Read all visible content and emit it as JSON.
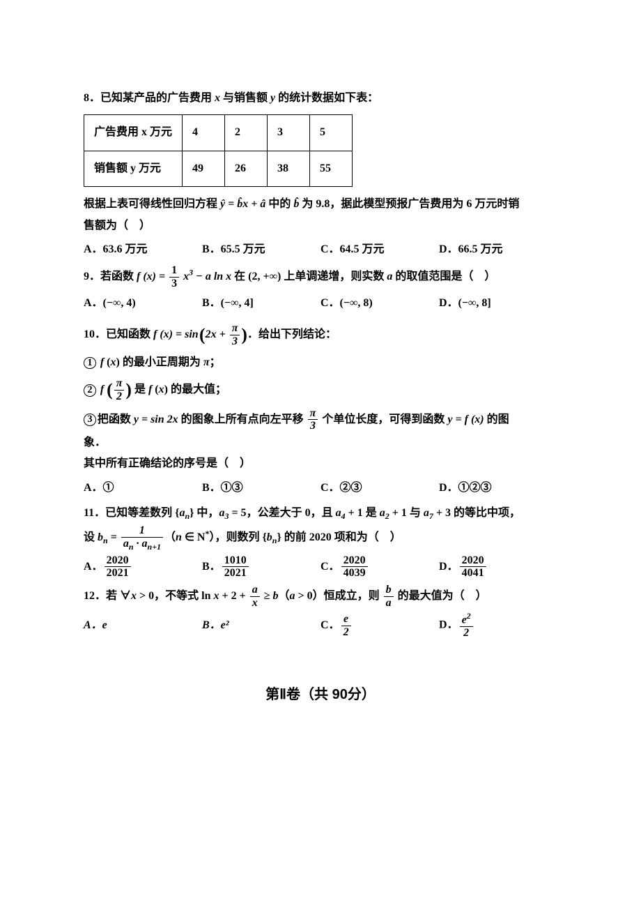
{
  "q8": {
    "num": "8",
    "text": "．已知某产品的广告费用 <i>x</i> 与销售额 <i>y</i> 的统计数据如下表：",
    "table": {
      "r1": [
        "广告费用 x 万元",
        "4",
        "2",
        "3",
        "5"
      ],
      "r2": [
        "销售额 y 万元",
        "49",
        "26",
        "38",
        "55"
      ]
    },
    "after1_a": "根据上表可得线性回归方程 ",
    "after1_eqn": "ŷ = b̂x + â",
    "after1_b": " 中的 ",
    "after1_bhat": "b̂",
    "after1_c": " 为 9.8，据此模型预报广告费用为 6 万元时销",
    "after2": "售额为（　）",
    "opts": {
      "A": "A．63.6 万元",
      "B": "B．65.5 万元",
      "C": "C．64.5 万元",
      "D": "D．66.5 万元"
    }
  },
  "q9": {
    "num": "9",
    "prefix": "．若函数 ",
    "mid": " 在 (2, +∞) 上单调递增，则实数 <i>a</i> 的取值范围是（　）",
    "frac_num": "1",
    "frac_den": "3",
    "opts": {
      "A": "A．(−∞, 4)",
      "B": "B．(−∞, 4]",
      "C": "C．(−∞, 8)",
      "D": "D．(−∞, 8]"
    }
  },
  "q10": {
    "num": "10",
    "prefix": "．已知函数 ",
    "suffix": "．给出下列结论：",
    "s1a": " <i>f</i> (<i>x</i>) 的最小正周期为 ",
    "s1b": "π",
    "s1c": "；",
    "s2a": " ",
    "s2b": " 是 <i>f</i> (<i>x</i>) 的最大值；",
    "s3a": "把函数 ",
    "s3b": "y = sin 2x",
    "s3c": " 的图象上所有点向左平移 ",
    "s3d": " 个单位长度，可得到函数 ",
    "s3e": "y = f (x)",
    "s3f": " 的图",
    "s3g": "象．",
    "tail": "其中所有正确结论的序号是（　）",
    "opts": {
      "A": "A．①",
      "B": "B．①③",
      "C": "C．②③",
      "D": "D．①②③"
    }
  },
  "q11": {
    "num": "11",
    "line1a": "．已知等差数列 {",
    "line1b": "} 中，",
    "line1c": " = 5",
    "line1d": "，公差大于 0，且 ",
    "line1e": " + 1 是 ",
    "line1f": " + 1 与 ",
    "line1g": " + 3 的等比中项，",
    "line2a": "设 ",
    "line2b": " = ",
    "line2c": "（",
    "line2d": " ∈ N",
    "line2e": "），则数列 {",
    "line2f": "} 的前 2020 项和为（　）",
    "optA_num": "2020",
    "optA_den": "2021",
    "optB_num": "1010",
    "optB_den": "2021",
    "optC_num": "2020",
    "optC_den": "4039",
    "optD_num": "2020",
    "optD_den": "4041"
  },
  "q12": {
    "num": "12",
    "line_a": "．若 ∀",
    "line_b": " > 0，不等式 ln ",
    "line_c": " + 2 + ",
    "line_d": " ≥ ",
    "line_e": "（",
    "line_f": " > 0）恒成立，则 ",
    "line_g": " 的最大值为（　）",
    "opts": {
      "A": "A．e",
      "B": "B．e²"
    }
  },
  "section2": "第Ⅱ卷（共 90分）"
}
